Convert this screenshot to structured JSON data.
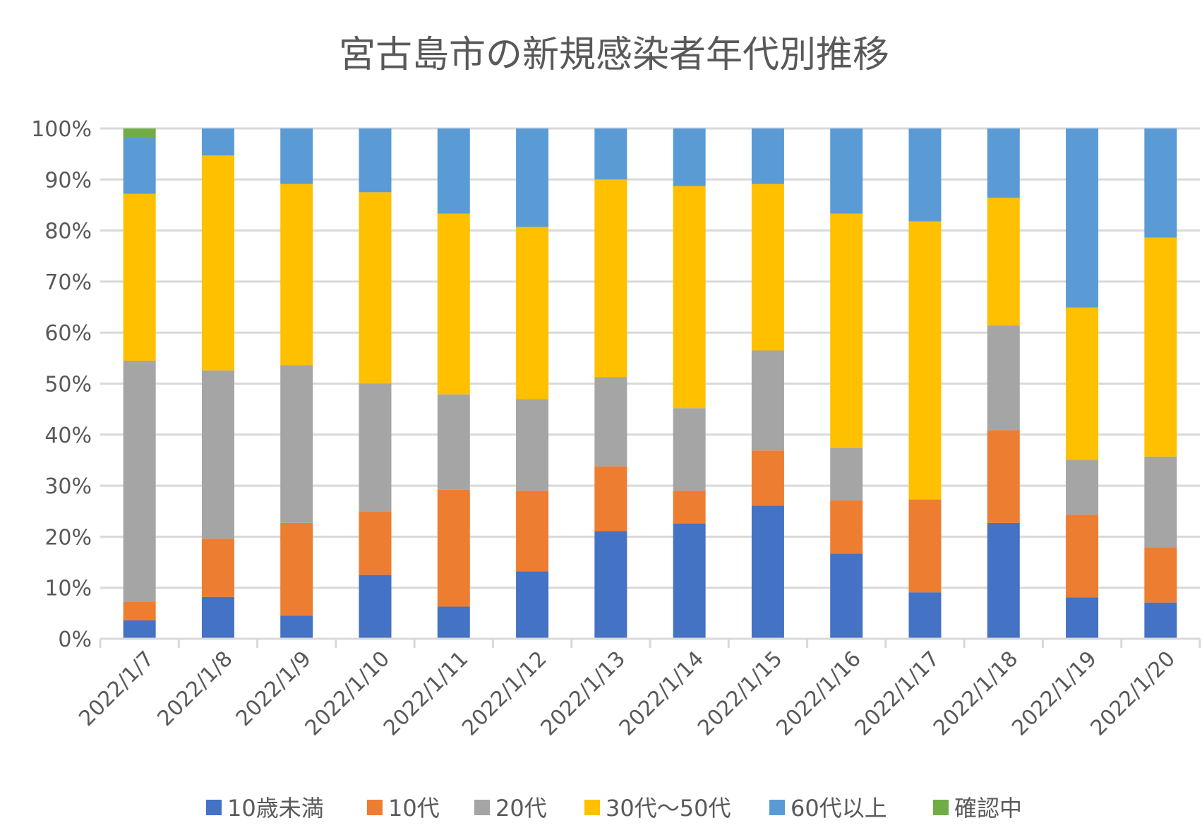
{
  "chart_data": {
    "type": "bar",
    "stacked": "percent",
    "title": "宮古島市の新規感染者年代別推移",
    "xlabel": "",
    "ylabel": "",
    "ylim": [
      0,
      100
    ],
    "yticks": [
      "0%",
      "10%",
      "20%",
      "30%",
      "40%",
      "50%",
      "60%",
      "70%",
      "80%",
      "90%",
      "100%"
    ],
    "grid": true,
    "legend_position": "bottom",
    "categories": [
      "2022/1/7",
      "2022/1/8",
      "2022/1/9",
      "2022/1/10",
      "2022/1/11",
      "2022/1/12",
      "2022/1/13",
      "2022/1/14",
      "2022/1/15",
      "2022/1/16",
      "2022/1/17",
      "2022/1/18",
      "2022/1/19",
      "2022/1/20"
    ],
    "series": [
      {
        "name": "10歳未満",
        "color": "#4472C4",
        "values": [
          3.6,
          8.2,
          4.5,
          12.5,
          6.3,
          13.2,
          21.1,
          22.6,
          26.1,
          16.7,
          9.1,
          22.7,
          8.1,
          7.1
        ]
      },
      {
        "name": "10代",
        "color": "#ED7D31",
        "values": [
          3.6,
          11.4,
          18.2,
          12.5,
          22.9,
          15.8,
          12.7,
          6.4,
          10.8,
          10.4,
          18.2,
          18.2,
          16.2,
          10.8
        ]
      },
      {
        "name": "20代",
        "color": "#A5A5A5",
        "values": [
          47.3,
          33.0,
          30.9,
          25.0,
          18.7,
          18.0,
          17.5,
          16.2,
          19.6,
          10.3,
          0,
          20.5,
          10.8,
          17.8
        ]
      },
      {
        "name": "30代～50代",
        "color": "#FFC000",
        "values": [
          32.7,
          42.1,
          35.5,
          37.5,
          35.4,
          33.7,
          38.7,
          43.5,
          32.6,
          45.9,
          54.5,
          25.0,
          29.8,
          42.9
        ]
      },
      {
        "name": "60代以上",
        "color": "#5B9BD5",
        "values": [
          11.0,
          5.3,
          10.9,
          12.5,
          16.7,
          19.3,
          10.0,
          11.3,
          10.9,
          16.7,
          18.2,
          13.6,
          35.1,
          21.4
        ]
      },
      {
        "name": "確認中",
        "color": "#70AD47",
        "values": [
          1.8,
          0,
          0,
          0,
          0,
          0,
          0,
          0,
          0,
          0,
          0,
          0,
          0,
          0
        ]
      }
    ]
  }
}
